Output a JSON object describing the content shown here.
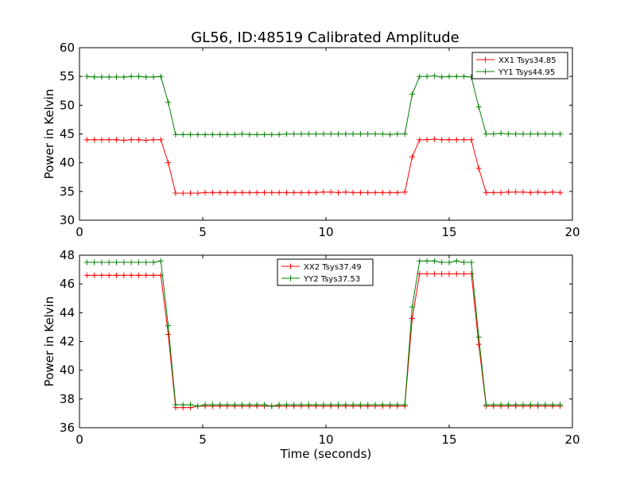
{
  "figure": {
    "title": "GL56, ID:48519 Calibrated Amplitude",
    "colors": {
      "red": "#ff0000",
      "green": "#008000",
      "axes": "#000000",
      "background": "#ffffff"
    }
  },
  "chart_data": [
    {
      "type": "line",
      "title": "GL56, ID:48519 Calibrated Amplitude",
      "xlabel": "",
      "ylabel": "Power in Kelvin",
      "xlim": [
        0,
        20
      ],
      "ylim": [
        30,
        60
      ],
      "xticks": [
        0,
        5,
        10,
        15,
        20
      ],
      "yticks": [
        30,
        35,
        40,
        45,
        50,
        55,
        60
      ],
      "grid": false,
      "legend_position": "top-right",
      "x": [
        0.3,
        0.6,
        0.9,
        1.2,
        1.5,
        1.8,
        2.1,
        2.4,
        2.7,
        3.0,
        3.3,
        3.6,
        3.9,
        4.2,
        4.5,
        4.8,
        5.1,
        5.4,
        5.7,
        6.0,
        6.3,
        6.6,
        6.9,
        7.2,
        7.5,
        7.8,
        8.1,
        8.4,
        8.7,
        9.0,
        9.3,
        9.6,
        9.9,
        10.2,
        10.5,
        10.8,
        11.1,
        11.4,
        11.7,
        12.0,
        12.3,
        12.6,
        12.9,
        13.2,
        13.5,
        13.8,
        14.1,
        14.4,
        14.7,
        15.0,
        15.3,
        15.6,
        15.9,
        16.2,
        16.5,
        16.8,
        17.1,
        17.4,
        17.7,
        18.0,
        18.3,
        18.6,
        18.9,
        19.2,
        19.5
      ],
      "series": [
        {
          "name": "XX1 Tsys34.85",
          "color": "#ff0000",
          "values": [
            44.0,
            44.0,
            44.0,
            44.0,
            44.0,
            43.9,
            44.0,
            44.0,
            43.9,
            44.0,
            44.0,
            40.0,
            34.7,
            34.7,
            34.7,
            34.7,
            34.8,
            34.8,
            34.8,
            34.8,
            34.8,
            34.8,
            34.8,
            34.8,
            34.8,
            34.8,
            34.8,
            34.8,
            34.8,
            34.8,
            34.8,
            34.8,
            34.9,
            34.9,
            34.8,
            34.9,
            34.8,
            34.8,
            34.8,
            34.8,
            34.8,
            34.8,
            34.8,
            34.9,
            41.0,
            44.0,
            44.0,
            44.1,
            44.0,
            44.0,
            44.0,
            44.0,
            44.0,
            39.0,
            34.8,
            34.8,
            34.8,
            34.9,
            34.9,
            34.9,
            34.8,
            34.9,
            34.8,
            34.9,
            34.8
          ]
        },
        {
          "name": "YY1 Tsys44.95",
          "color": "#008000",
          "values": [
            55.0,
            54.9,
            54.9,
            54.9,
            54.9,
            54.9,
            55.0,
            55.0,
            54.9,
            54.9,
            55.0,
            50.5,
            44.9,
            44.9,
            44.9,
            44.9,
            44.9,
            44.9,
            44.9,
            44.9,
            44.9,
            45.0,
            44.9,
            44.9,
            44.9,
            44.9,
            44.9,
            45.0,
            45.0,
            45.0,
            45.0,
            45.0,
            45.0,
            45.0,
            45.0,
            45.0,
            45.0,
            45.0,
            45.0,
            45.0,
            45.0,
            44.9,
            45.0,
            45.0,
            51.9,
            55.0,
            55.0,
            55.1,
            54.9,
            55.0,
            55.0,
            55.0,
            54.9,
            49.7,
            45.0,
            45.0,
            45.1,
            45.0,
            45.0,
            45.0,
            45.0,
            45.0,
            45.0,
            45.0,
            45.0
          ]
        }
      ]
    },
    {
      "type": "line",
      "title": "",
      "xlabel": "Time (seconds)",
      "ylabel": "Power in Kelvin",
      "xlim": [
        0,
        20
      ],
      "ylim": [
        36,
        48
      ],
      "xticks": [
        0,
        5,
        10,
        15,
        20
      ],
      "yticks": [
        36,
        38,
        40,
        42,
        44,
        46,
        48
      ],
      "grid": false,
      "legend_position": "top-center",
      "x": [
        0.3,
        0.6,
        0.9,
        1.2,
        1.5,
        1.8,
        2.1,
        2.4,
        2.7,
        3.0,
        3.3,
        3.6,
        3.9,
        4.2,
        4.5,
        4.8,
        5.1,
        5.4,
        5.7,
        6.0,
        6.3,
        6.6,
        6.9,
        7.2,
        7.5,
        7.8,
        8.1,
        8.4,
        8.7,
        9.0,
        9.3,
        9.6,
        9.9,
        10.2,
        10.5,
        10.8,
        11.1,
        11.4,
        11.7,
        12.0,
        12.3,
        12.6,
        12.9,
        13.2,
        13.5,
        13.8,
        14.1,
        14.4,
        14.7,
        15.0,
        15.3,
        15.6,
        15.9,
        16.2,
        16.5,
        16.8,
        17.1,
        17.4,
        17.7,
        18.0,
        18.3,
        18.6,
        18.9,
        19.2,
        19.5
      ],
      "series": [
        {
          "name": "XX2 Tsys37.49",
          "color": "#ff0000",
          "values": [
            46.6,
            46.6,
            46.6,
            46.6,
            46.6,
            46.6,
            46.6,
            46.6,
            46.6,
            46.6,
            46.6,
            42.5,
            37.4,
            37.4,
            37.4,
            37.5,
            37.5,
            37.5,
            37.5,
            37.5,
            37.5,
            37.5,
            37.5,
            37.5,
            37.5,
            37.5,
            37.5,
            37.5,
            37.5,
            37.5,
            37.5,
            37.5,
            37.5,
            37.5,
            37.5,
            37.5,
            37.5,
            37.5,
            37.5,
            37.5,
            37.5,
            37.5,
            37.5,
            37.5,
            43.6,
            46.7,
            46.7,
            46.7,
            46.7,
            46.7,
            46.7,
            46.7,
            46.7,
            41.8,
            37.5,
            37.5,
            37.5,
            37.5,
            37.5,
            37.5,
            37.5,
            37.5,
            37.5,
            37.5,
            37.5
          ]
        },
        {
          "name": "YY2 Tsys37.53",
          "color": "#008000",
          "values": [
            47.5,
            47.5,
            47.5,
            47.5,
            47.5,
            47.5,
            47.5,
            47.5,
            47.5,
            47.5,
            47.6,
            43.1,
            37.6,
            37.6,
            37.6,
            37.5,
            37.6,
            37.6,
            37.6,
            37.6,
            37.6,
            37.6,
            37.6,
            37.6,
            37.6,
            37.5,
            37.6,
            37.6,
            37.6,
            37.6,
            37.6,
            37.6,
            37.6,
            37.6,
            37.6,
            37.6,
            37.6,
            37.6,
            37.6,
            37.6,
            37.6,
            37.6,
            37.6,
            37.6,
            44.4,
            47.6,
            47.6,
            47.6,
            47.5,
            47.5,
            47.6,
            47.5,
            47.5,
            42.3,
            37.6,
            37.6,
            37.6,
            37.6,
            37.6,
            37.6,
            37.6,
            37.6,
            37.6,
            37.6,
            37.6
          ]
        }
      ]
    }
  ]
}
